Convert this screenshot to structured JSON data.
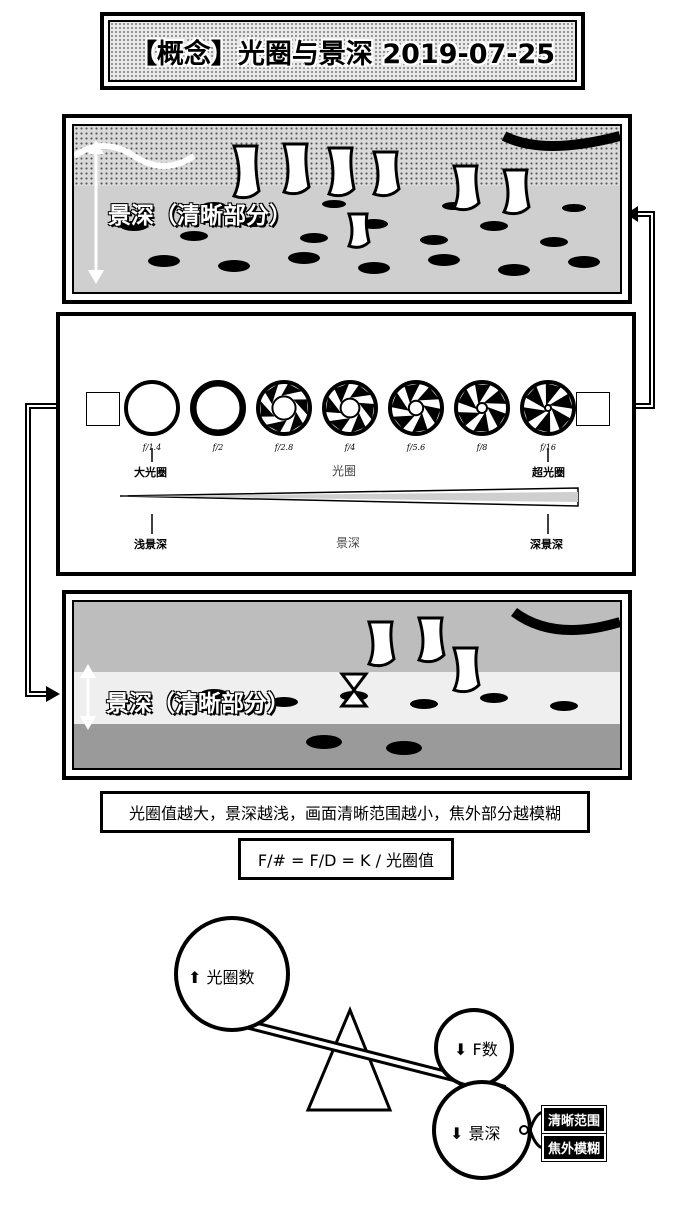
{
  "title": "【概念】光圈与景深 2019-07-25",
  "top_photo": {
    "label": "景深（清晰部分）"
  },
  "bottom_photo": {
    "label": "景深（清晰部分）"
  },
  "aperture_strip": {
    "stops": [
      {
        "f_label": "f/1.4",
        "blades": 0
      },
      {
        "f_label": "f/2",
        "blades": 1
      },
      {
        "f_label": "f/2.8",
        "blades": 2
      },
      {
        "f_label": "f/4",
        "blades": 3
      },
      {
        "f_label": "f/5.6",
        "blades": 4
      },
      {
        "f_label": "f/8",
        "blades": 5
      },
      {
        "f_label": "f/16",
        "blades": 6
      }
    ],
    "large_aperture": "大光圈",
    "aperture": "光圈",
    "small_aperture": "超光圈",
    "shallow_dof": "浅景深",
    "dof": "景深",
    "deep_dof": "深景深"
  },
  "rule_text": "光圈值越大，景深越浅，画面清晰范围越小，焦外部分越模糊",
  "formula": "F/# = F/D = K / 光圈值",
  "seesaw": {
    "top_circle": "⬆ 光圈数",
    "mid_circle": "⬇ F数",
    "bottom_circle": "⬇ 景深",
    "tag_sharp": "清晰范围",
    "tag_blur": "焦外模糊"
  }
}
